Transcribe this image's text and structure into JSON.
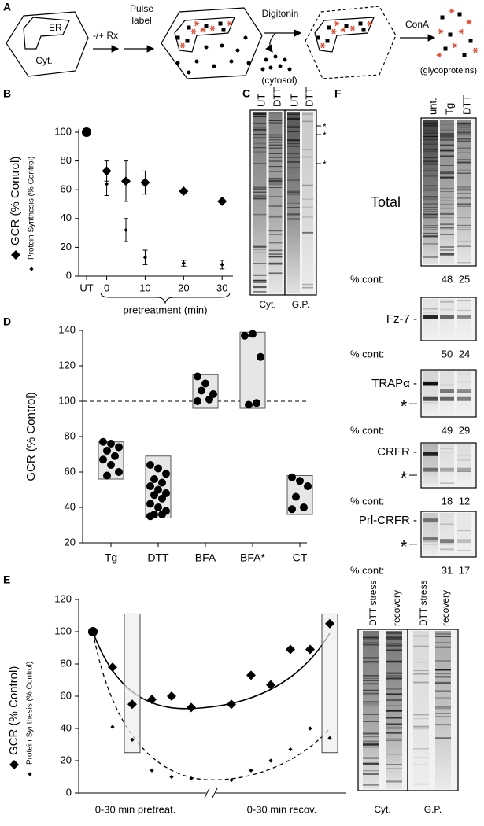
{
  "schematic": {
    "label": "A",
    "er": "ER",
    "cyt": "Cyt.",
    "treatment": "-/+ Rx",
    "pulse_label": [
      "Pulse",
      "label"
    ],
    "digitonin": "Digitonin",
    "cytosol": "(cytosol)",
    "cona": "ConA",
    "glycoproteins": "(glycoproteins)"
  },
  "chart_data": [
    {
      "type": "scatter",
      "panel": "B",
      "x": [
        0,
        5,
        10,
        20,
        30
      ],
      "xlim": [
        -4,
        32
      ],
      "xticks": [
        0,
        10,
        20,
        30
      ],
      "xlabel": "pretreatment (min)",
      "ylim": [
        0,
        100
      ],
      "yticks": [
        0,
        20,
        40,
        60,
        80,
        100
      ],
      "control": {
        "label": "UT",
        "value": 100
      },
      "series": [
        {
          "name": "GCR (% Control)",
          "marker": "diamond",
          "values": [
            73,
            66,
            65,
            59,
            52
          ],
          "errors": [
            7,
            14,
            8,
            1,
            1
          ]
        },
        {
          "name": "Protein Synthesis (% Control)",
          "marker": "small-diamond",
          "values": [
            64,
            32,
            13,
            9,
            8
          ],
          "errors": [
            8,
            8,
            5,
            2,
            3
          ]
        }
      ]
    },
    {
      "type": "strip",
      "panel": "D",
      "ylabel": "GCR (% Control)",
      "categories": [
        "Tg",
        "DTT",
        "BFA",
        "BFA*",
        "CT"
      ],
      "values": [
        [
          77,
          76,
          74,
          72,
          69,
          67,
          64,
          60,
          58
        ],
        [
          64,
          62,
          59,
          56,
          54,
          52,
          50,
          48,
          47,
          45,
          42,
          40,
          38,
          36,
          36,
          35
        ],
        [
          114,
          110,
          104,
          106,
          101,
          100
        ],
        [
          137,
          138,
          125,
          98,
          99
        ],
        [
          57,
          55,
          52,
          46,
          40,
          39
        ]
      ],
      "ranges": [
        [
          56,
          77
        ],
        [
          34,
          69
        ],
        [
          96,
          115
        ],
        [
          96,
          139
        ],
        [
          36,
          58
        ]
      ],
      "refline": 100,
      "ylim": [
        20,
        140
      ],
      "yticks": [
        20,
        40,
        60,
        80,
        100,
        120,
        140
      ]
    },
    {
      "type": "scatter",
      "panel": "E",
      "categories": [
        null,
        null,
        null,
        null,
        null,
        null,
        null,
        null,
        null,
        null,
        null,
        null
      ],
      "xlabels": [
        "0-30 min pretreat.",
        "0-30 min recov."
      ],
      "ylim": [
        0,
        120
      ],
      "yticks": [
        0,
        20,
        40,
        60,
        80,
        100,
        120
      ],
      "highlights": [
        [
          25,
          111
        ],
        [
          25,
          111
        ]
      ],
      "series": [
        {
          "name": "GCR (% Control)",
          "marker": "diamond",
          "values": [
            100,
            78,
            55,
            58,
            60,
            53,
            55,
            73,
            67,
            89,
            89,
            105
          ]
        },
        {
          "name": "Protein Synthesis (% Control)",
          "marker": "small-diamond",
          "values": [
            100,
            41,
            33,
            14,
            10,
            9,
            8,
            14,
            20,
            27,
            40,
            34
          ]
        }
      ]
    }
  ],
  "gels": {
    "c": {
      "label": "C",
      "lanes": [
        "UT",
        "DTT",
        "UT",
        "DTT"
      ],
      "markers": [
        "*",
        "*",
        "*"
      ],
      "fractions": [
        "Cyt.",
        "G.P."
      ]
    },
    "e": {
      "lanes": [
        "DTT stress",
        "recovery",
        "DTT stress",
        "recovery"
      ],
      "fractions": [
        "Cyt.",
        "G.P."
      ]
    },
    "f": {
      "label": "F",
      "lanes": [
        "unt.",
        "Tg",
        "DTT"
      ],
      "cont_label": "% cont:",
      "blots": [
        {
          "name": "Total",
          "cont": [
            48,
            25
          ]
        },
        {
          "name": "Fz-7 -",
          "cont": [
            50,
            24
          ]
        },
        {
          "name": "TRAPα -",
          "band_marker": "*",
          "cont": [
            49,
            29
          ]
        },
        {
          "name": "CRFR -",
          "band_marker": "*",
          "cont": [
            18,
            12
          ]
        },
        {
          "name": "Prl-CRFR -",
          "band_marker": "*",
          "cont": [
            31,
            17
          ]
        }
      ]
    }
  }
}
